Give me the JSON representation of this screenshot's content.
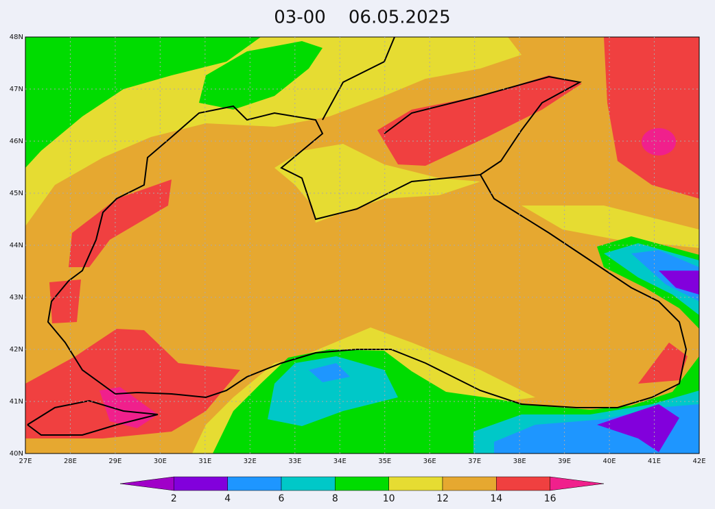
{
  "title": "03-00    06.05.2025",
  "lat_labels": [
    "40N",
    "41N",
    "42N",
    "43N",
    "44N",
    "45N",
    "46N",
    "47N",
    "48N"
  ],
  "lon_labels": [
    "27E",
    "28E",
    "29E",
    "30E",
    "31E",
    "32E",
    "33E",
    "34E",
    "35E",
    "36E",
    "37E",
    "38E",
    "39E",
    "40E",
    "41E",
    "42E"
  ],
  "colorbar": {
    "labels": [
      "2",
      "4",
      "6",
      "8",
      "10",
      "12",
      "14",
      "16"
    ],
    "colors": [
      "#a000c8",
      "#8200dc",
      "#1e96ff",
      "#00c8c8",
      "#00dc00",
      "#e6dc32",
      "#e6a830",
      "#f04040",
      "#f0208c"
    ]
  }
}
